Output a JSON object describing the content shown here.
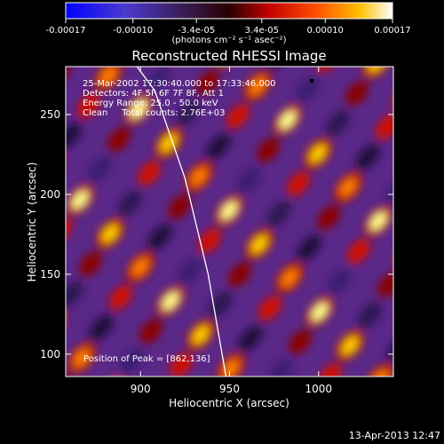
{
  "chart_data": {
    "type": "heatmap",
    "title": "Reconstructed RHESSI Image",
    "xlabel": "Heliocentric X (arcsec)",
    "ylabel": "Heliocentric Y (arcsec)",
    "xlim": [
      858,
      1042
    ],
    "ylim": [
      86,
      280
    ],
    "x_ticks": [
      900,
      950,
      1000
    ],
    "y_ticks": [
      100,
      150,
      200,
      250
    ],
    "colorbar": {
      "unit_label": "(photons cm⁻² s⁻¹ asec⁻²)",
      "tick_labels": [
        "-0.00017",
        "-0.00010",
        "-3.4e-05",
        "3.4e-05",
        "0.00010",
        "0.00017"
      ],
      "tick_values": [
        -0.00017,
        -0.0001,
        -3.4e-05,
        3.4e-05,
        0.0001,
        0.00017
      ],
      "range": [
        -0.00017,
        0.00017
      ],
      "colors": [
        "#0000ff",
        "#6a2fb8",
        "#4b2070",
        "#a00000",
        "#ff3000",
        "#ff9800",
        "#fff27a",
        "#ffffff"
      ]
    },
    "annotations": [
      "25-Mar-2002 17:30:40.000 to 17:33:46.000",
      "Detectors: 4F 5F 6F 7F 8F, Att 1",
      "Energy Range: 25.0 - 50.0 keV",
      "Clean     Total counts: 2.76E+03"
    ],
    "peak_label": "Position of Peak = [862,136]",
    "peak_position": [
      862,
      136
    ],
    "limb_curve": [
      [
        948,
        86
      ],
      [
        938,
        150
      ],
      [
        925,
        210
      ],
      [
        908,
        265
      ],
      [
        898,
        280
      ]
    ]
  },
  "timestamp": "13-Apr-2013 12:47"
}
